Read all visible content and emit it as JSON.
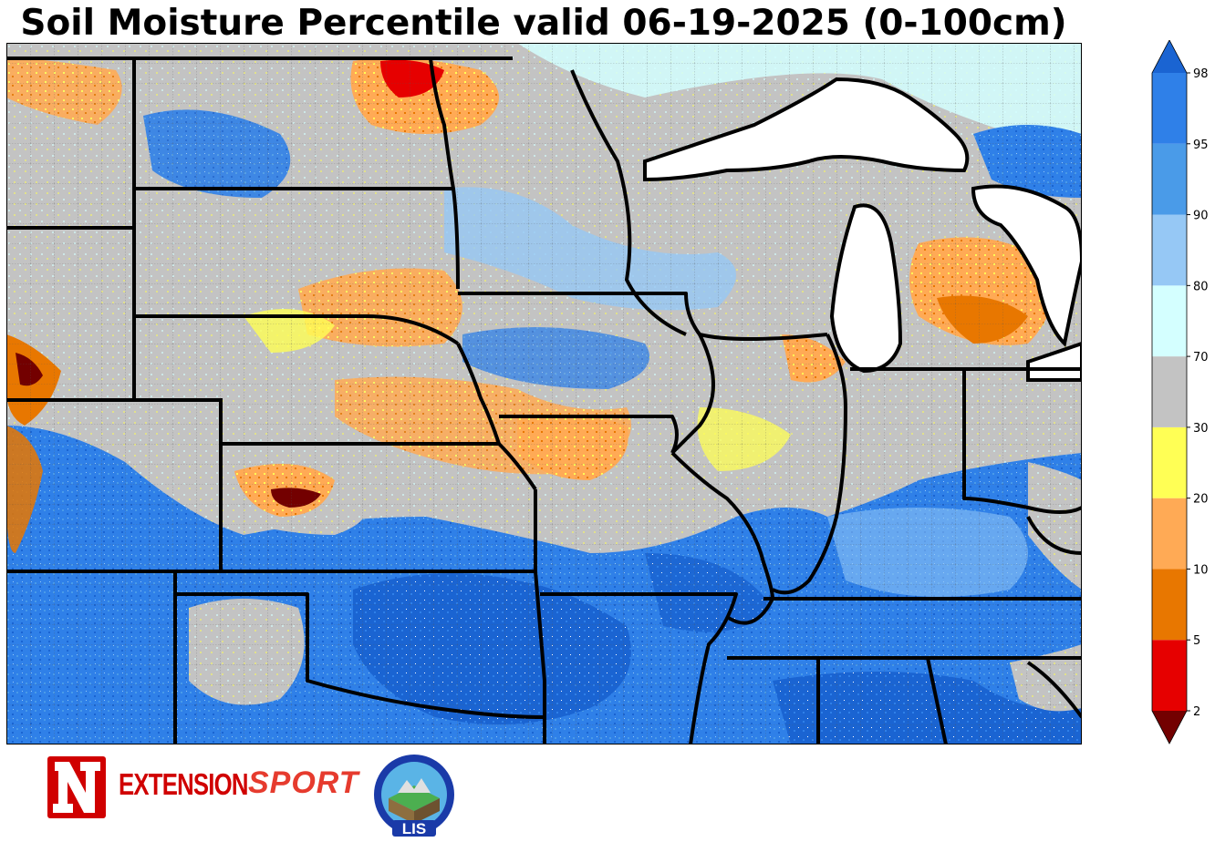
{
  "title": "Soil Moisture Percentile valid 06-19-2025 (0-100cm)",
  "colorbar": {
    "ticks": [
      "2",
      "5",
      "10",
      "20",
      "30",
      "70",
      "80",
      "90",
      "95",
      "98"
    ],
    "bins": [
      {
        "range": "<2",
        "color": "#730000"
      },
      {
        "range": "2-5",
        "color": "#e60000"
      },
      {
        "range": "5-10",
        "color": "#e87700"
      },
      {
        "range": "10-20",
        "color": "#ffaa55"
      },
      {
        "range": "20-30",
        "color": "#ffff55"
      },
      {
        "range": "30-70",
        "color": "#c3c3c3"
      },
      {
        "range": "70-80",
        "color": "#d4ffff"
      },
      {
        "range": "80-90",
        "color": "#96c8f5"
      },
      {
        "range": "90-95",
        "color": "#4a9be8"
      },
      {
        "range": "95-98",
        "color": "#2f80e8"
      },
      {
        "range": ">98",
        "color": "#1a64d2"
      }
    ]
  },
  "colors": {
    "lake": "#ffffff",
    "state_border": "#000000",
    "background": "#c3c3c3"
  },
  "logos": {
    "extension_text": "EXTENSION",
    "sport_text": "SPORT",
    "lis_text": "LIS"
  }
}
